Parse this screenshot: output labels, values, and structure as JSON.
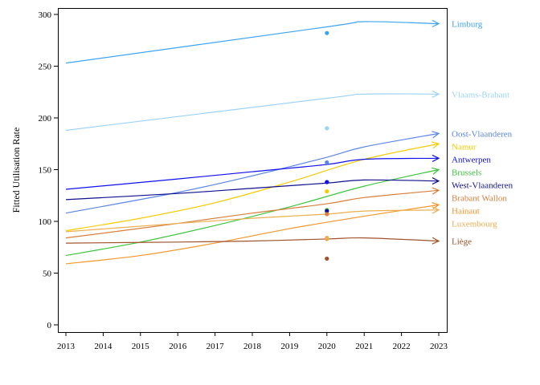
{
  "chart_data": {
    "type": "line",
    "title": "",
    "xlabel": "",
    "ylabel": "Fitted Utilisation Rate",
    "xlim": [
      2013,
      2023
    ],
    "ylim": [
      0,
      310
    ],
    "x_ticks": [
      2013,
      2014,
      2015,
      2016,
      2017,
      2018,
      2019,
      2020,
      2021,
      2022,
      2023
    ],
    "y_ticks": [
      0,
      50,
      100,
      150,
      200,
      250,
      300
    ],
    "grid": false,
    "legend": "series labels at right end of lines",
    "series": [
      {
        "name": "Limburg",
        "color": "#3ea4f0",
        "line": [
          [
            2013,
            253
          ],
          [
            2020,
            288
          ],
          [
            2021,
            293
          ],
          [
            2023,
            291
          ]
        ],
        "point": [
          2020,
          282
        ]
      },
      {
        "name": "Vlaams-Brabant",
        "color": "#9dd3f5",
        "line": [
          [
            2013,
            188
          ],
          [
            2020,
            219
          ],
          [
            2021,
            223
          ],
          [
            2023,
            223
          ]
        ],
        "point": [
          2020,
          190
        ]
      },
      {
        "name": "Oost-Vlaanderen",
        "color": "#5b86e5",
        "line": [
          [
            2013,
            108
          ],
          [
            2016,
            128
          ],
          [
            2018,
            144
          ],
          [
            2020,
            162
          ],
          [
            2021,
            172
          ],
          [
            2023,
            185
          ]
        ],
        "point": [
          2020,
          157
        ]
      },
      {
        "name": "Namur",
        "color": "#f5cc00",
        "line": [
          [
            2013,
            91
          ],
          [
            2015,
            103
          ],
          [
            2017,
            118
          ],
          [
            2019,
            138
          ],
          [
            2021,
            160
          ],
          [
            2023,
            175
          ]
        ],
        "point": [
          2020,
          129
        ]
      },
      {
        "name": "Antwerpen",
        "color": "#1010ee",
        "line": [
          [
            2013,
            131
          ],
          [
            2016,
            141
          ],
          [
            2018,
            148
          ],
          [
            2020,
            155
          ],
          [
            2021,
            160
          ],
          [
            2023,
            161
          ]
        ],
        "point": [
          2020,
          138
        ]
      },
      {
        "name": "Brussels",
        "color": "#3cc43c",
        "line": [
          [
            2013,
            67
          ],
          [
            2015,
            80
          ],
          [
            2017,
            96
          ],
          [
            2019,
            114
          ],
          [
            2021,
            134
          ],
          [
            2023,
            150
          ]
        ],
        "point": [
          2020,
          111
        ]
      },
      {
        "name": "West-Vlaanderen",
        "color": "#101090",
        "line": [
          [
            2013,
            121
          ],
          [
            2016,
            127
          ],
          [
            2018,
            132
          ],
          [
            2020,
            137
          ],
          [
            2021,
            140
          ],
          [
            2023,
            139
          ]
        ],
        "point": [
          2020,
          110
        ]
      },
      {
        "name": "Brabant Wallon",
        "color": "#d87f3c",
        "line": [
          [
            2013,
            84
          ],
          [
            2016,
            98
          ],
          [
            2018,
            108
          ],
          [
            2020,
            117
          ],
          [
            2021,
            123
          ],
          [
            2023,
            130
          ]
        ],
        "point": [
          2020,
          107
        ]
      },
      {
        "name": "Hainaut",
        "color": "#f0972c",
        "line": [
          [
            2013,
            59
          ],
          [
            2015,
            67
          ],
          [
            2017,
            79
          ],
          [
            2019,
            93
          ],
          [
            2021,
            105
          ],
          [
            2023,
            116
          ]
        ],
        "point": [
          2020,
          83
        ]
      },
      {
        "name": "Luxembourg",
        "color": "#ebae50",
        "line": [
          [
            2013,
            90
          ],
          [
            2016,
            98
          ],
          [
            2018,
            103
          ],
          [
            2020,
            107
          ],
          [
            2021,
            110
          ],
          [
            2023,
            111
          ]
        ],
        "point": [
          2020,
          84
        ]
      },
      {
        "name": "Liège",
        "color": "#a0522d",
        "line": [
          [
            2013,
            79
          ],
          [
            2016,
            80
          ],
          [
            2018,
            81
          ],
          [
            2020,
            83
          ],
          [
            2021,
            84
          ],
          [
            2023,
            81
          ]
        ],
        "point": [
          2020,
          64
        ]
      }
    ]
  }
}
